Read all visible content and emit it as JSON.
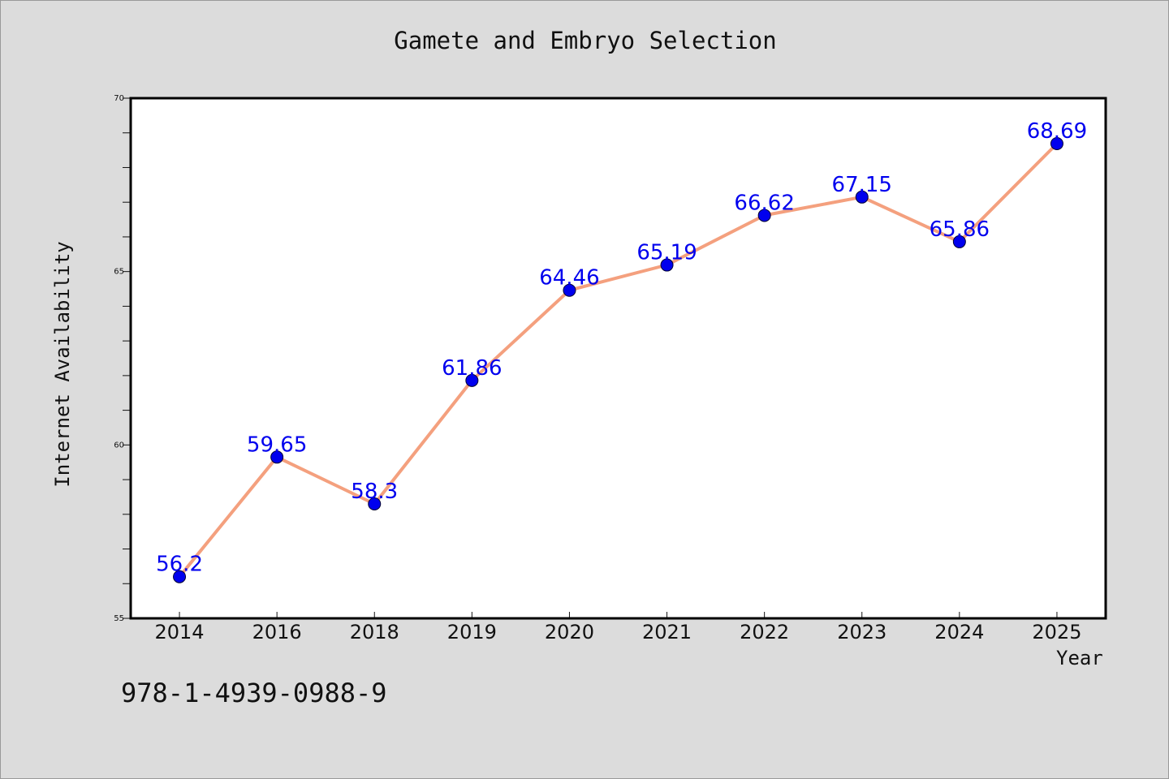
{
  "chart_data": {
    "type": "line",
    "title": "Gamete and Embryo Selection",
    "xlabel": "Year",
    "ylabel": "Internet Availability",
    "categories": [
      "2014",
      "2016",
      "2018",
      "2019",
      "2020",
      "2021",
      "2022",
      "2023",
      "2024",
      "2025"
    ],
    "series": [
      {
        "values": [
          56.2,
          59.65,
          58.3,
          61.86,
          64.46,
          65.19,
          66.62,
          67.15,
          65.86,
          68.69
        ],
        "labels": [
          "56.2",
          "59.65",
          "58.3",
          "61.86",
          "64.46",
          "65.19",
          "66.62",
          "67.15",
          "65.86",
          "68.69"
        ],
        "line_color": "#f4a07e",
        "marker_color": "#0000ee",
        "label_color": "#0000ee"
      }
    ],
    "ylim": [
      55,
      70
    ],
    "yticks": [
      "55",
      "60",
      "65",
      "70"
    ],
    "grid": false,
    "legend": false
  },
  "footer": {
    "isbn": "978-1-4939-0988-9"
  }
}
